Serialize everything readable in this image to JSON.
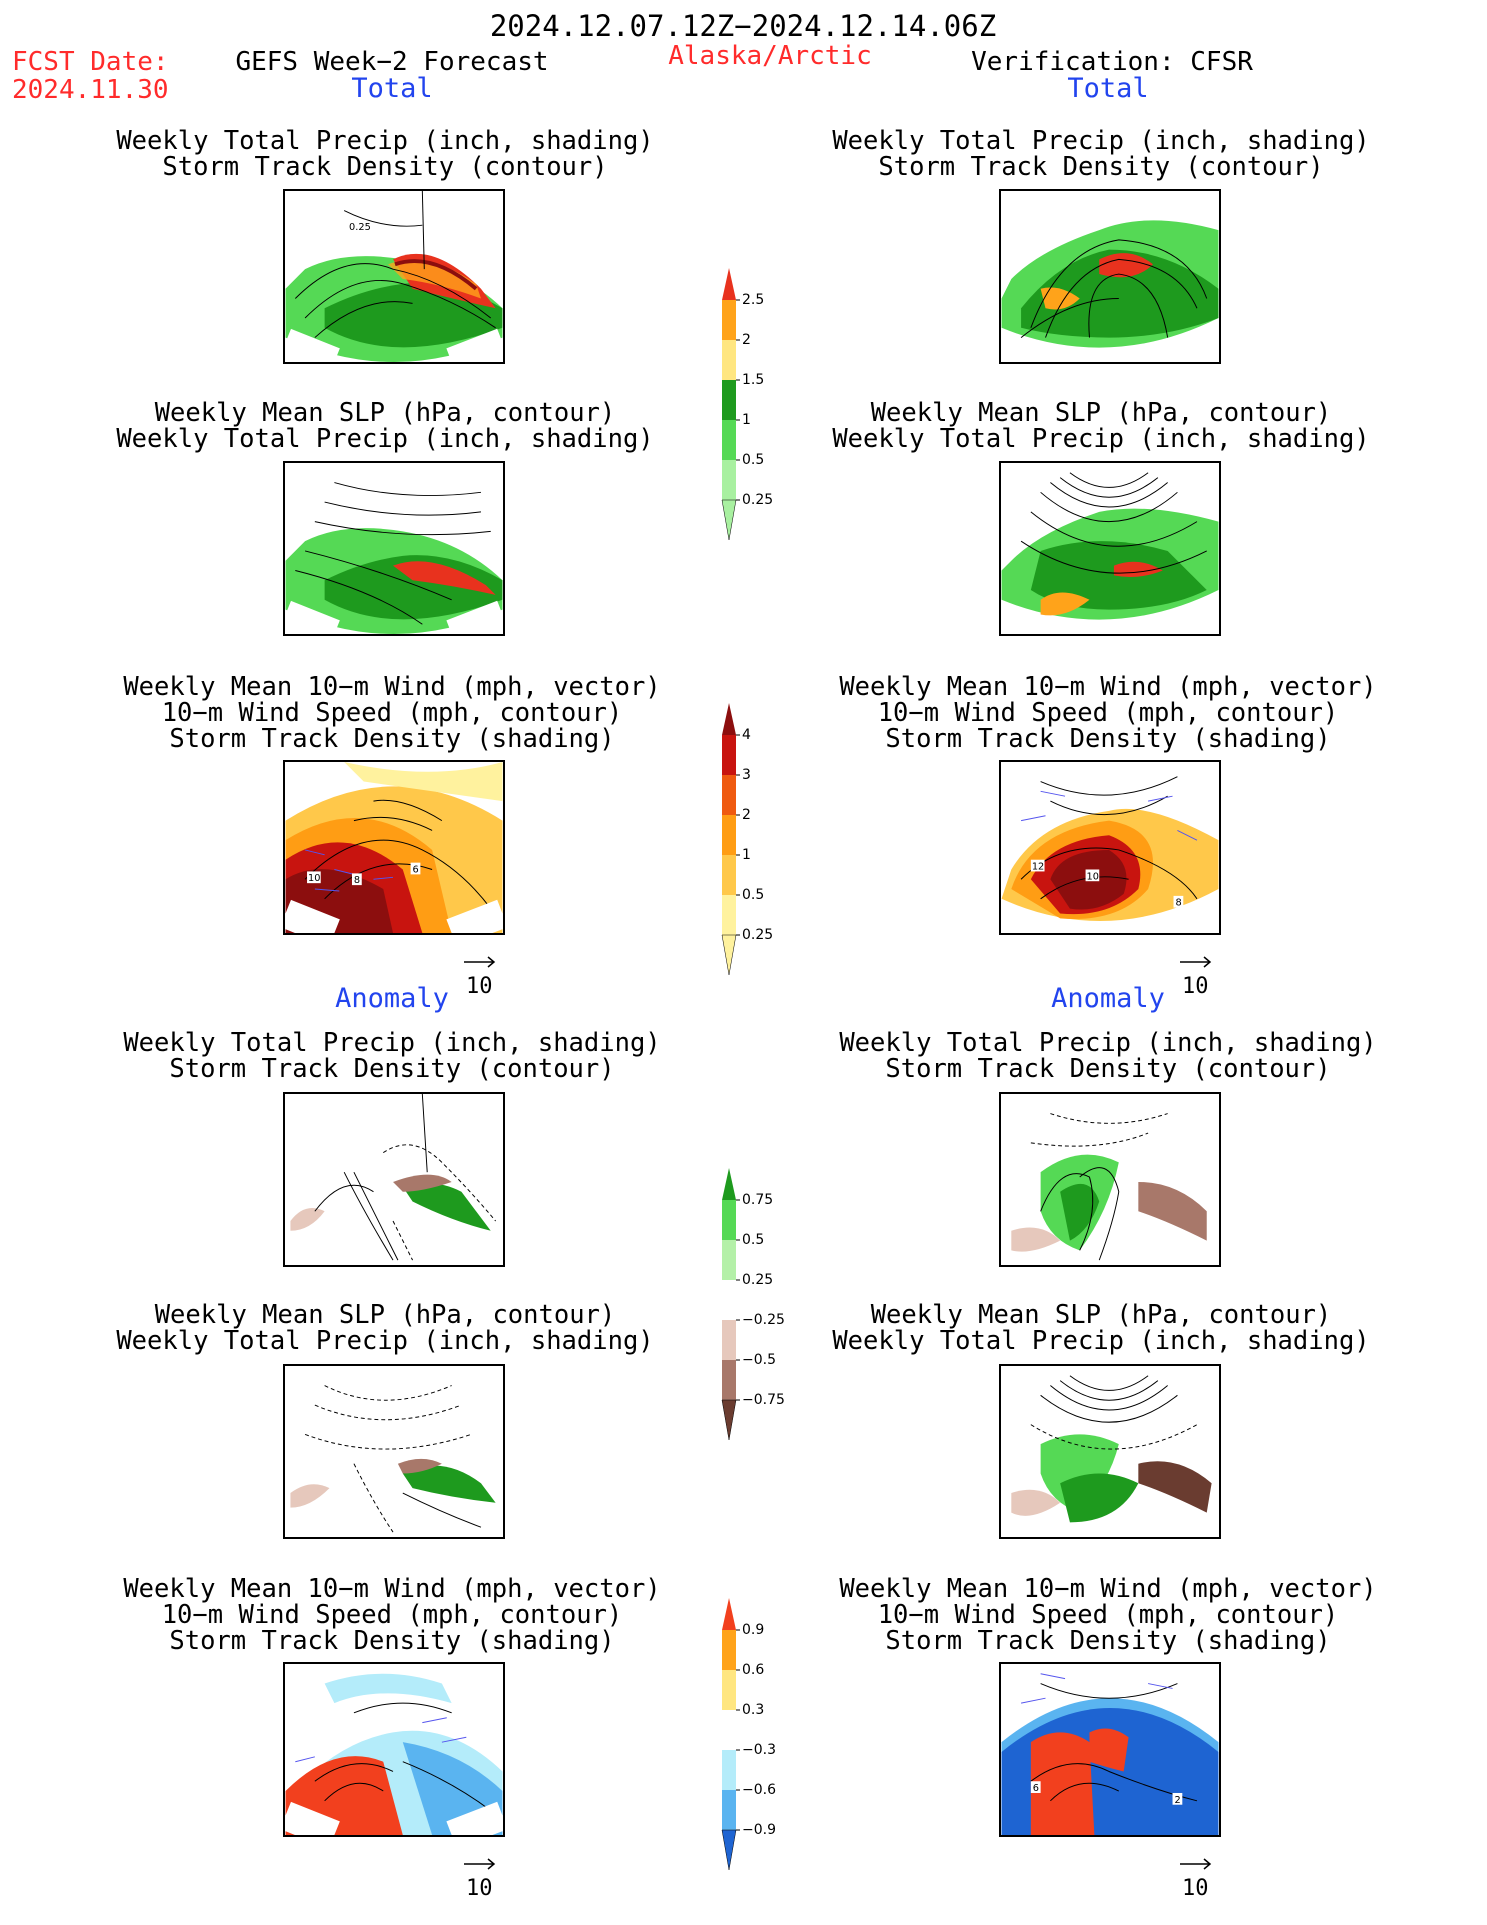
{
  "header": {
    "period": "2024.12.07.12Z−2024.12.14.06Z",
    "fcst_date_label": "FCST Date:",
    "fcst_date_value": "2024.11.30",
    "forecast_label": "GEFS Week−2 Forecast",
    "region": "Alaska/Arctic",
    "verification_label": "Verification: CFSR"
  },
  "sections": {
    "total_left": "Total",
    "total_right": "Total",
    "anomaly_left": "Anomaly",
    "anomaly_right": "Anomaly"
  },
  "captions": {
    "precip_track": [
      "Weekly Total Precip (inch, shading)",
      "Storm Track Density (contour)"
    ],
    "slp_precip": [
      "Weekly Mean SLP (hPa, contour)",
      "Weekly Total Precip (inch, shading)"
    ],
    "wind_track": [
      "Weekly Mean 10−m Wind (mph, vector)",
      "10−m Wind Speed (mph, contour)",
      "Storm Track Density (shading)"
    ]
  },
  "vector_reference": "10",
  "colorbars": {
    "total_precip": {
      "labels": [
        "2.5",
        "2",
        "1.5",
        "1",
        "0.5",
        "0.25"
      ],
      "colors": [
        "#e8321e",
        "#ffa31a",
        "#ffe680",
        "#1e9a1e",
        "#55d955",
        "#a8f0a0"
      ]
    },
    "total_storm": {
      "labels": [
        "4",
        "3",
        "2",
        "1",
        "0.5",
        "0.25"
      ],
      "colors": [
        "#8c0e0e",
        "#c8140f",
        "#ef5a10",
        "#ff9d14",
        "#ffc84a",
        "#fff29e"
      ]
    },
    "anom_precip": {
      "labels": [
        "0.75",
        "0.5",
        "0.25",
        "−0.25",
        "−0.5",
        "−0.75"
      ],
      "colors": [
        "#1e9a1e",
        "#55d955",
        "#b4f0a8",
        "#ffffff",
        "#e6c8bc",
        "#a8786a",
        "#6a3c30"
      ]
    },
    "anom_storm": {
      "labels": [
        "0.9",
        "0.6",
        "0.3",
        "−0.3",
        "−0.6",
        "−0.9"
      ],
      "colors": [
        "#f2401e",
        "#ffa31a",
        "#ffe680",
        "#ffffff",
        "#b4ecfa",
        "#5ab4f0",
        "#1e64d2"
      ]
    }
  },
  "panel_labels": {
    "wind_total_left": [
      "10",
      "8",
      "6"
    ],
    "wind_total_right": [
      "12",
      "10",
      "8"
    ],
    "wind_anom_right": [
      "6",
      "2"
    ],
    "precip_total_left_contour": "0.25"
  }
}
